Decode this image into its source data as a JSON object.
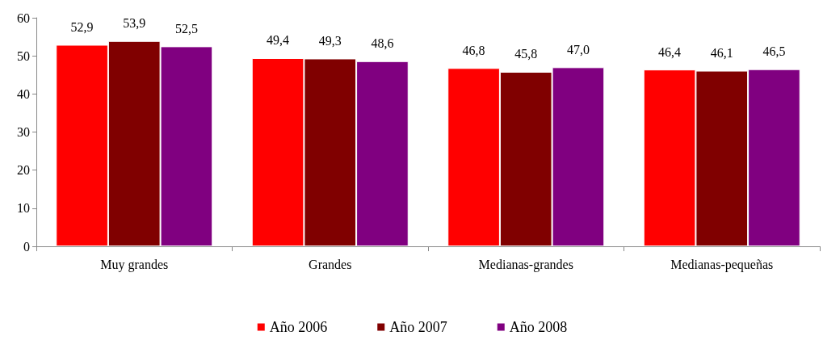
{
  "chart_data": {
    "type": "bar",
    "categories": [
      "Muy grandes",
      "Grandes",
      "Medianas-grandes",
      "Medianas-pequeñas"
    ],
    "series": [
      {
        "name": "Año 2006",
        "color": "#ff0000",
        "values": [
          52.9,
          49.4,
          46.8,
          46.4
        ],
        "value_labels": [
          "52,9",
          "49,4",
          "46,8",
          "46,4"
        ]
      },
      {
        "name": "Año 2007",
        "color": "#800000",
        "values": [
          53.9,
          49.3,
          45.8,
          46.1
        ],
        "value_labels": [
          "53,9",
          "49,3",
          "45,8",
          "46,1"
        ]
      },
      {
        "name": "Año 2008",
        "color": "#800080",
        "values": [
          52.5,
          48.6,
          47.0,
          46.5
        ],
        "value_labels": [
          "52,5",
          "48,6",
          "47,0",
          "46,5"
        ]
      }
    ],
    "ylim": [
      0,
      60
    ],
    "yticks": [
      0,
      10,
      20,
      30,
      40,
      50,
      60
    ],
    "grid": false,
    "legend": "bottom"
  }
}
